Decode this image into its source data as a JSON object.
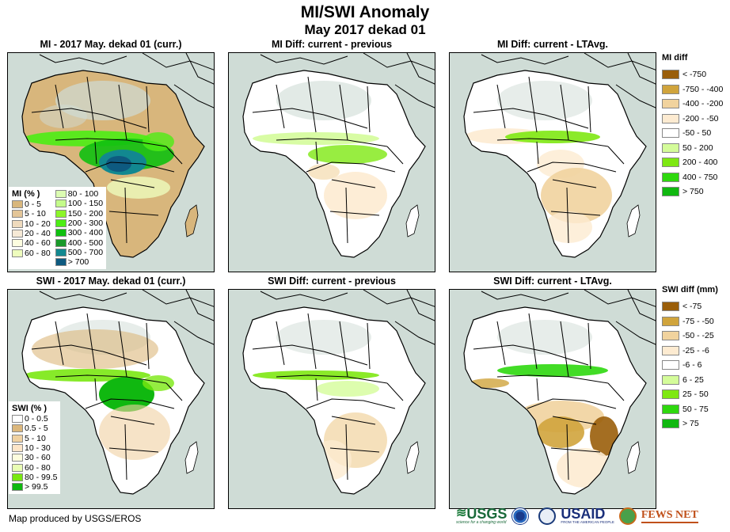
{
  "title": "MI/SWI Anomaly",
  "subtitle": "May 2017 dekad 01",
  "panels": [
    {
      "title": "MI - 2017 May. dekad 01 (curr.)",
      "mode": "mi_curr"
    },
    {
      "title": "MI Diff: current - previous",
      "mode": "mi_prev"
    },
    {
      "title": "MI Diff: current - LTAvg.",
      "mode": "mi_lta"
    },
    {
      "title": "SWI - 2017 May. dekad 01 (curr.)",
      "mode": "swi_curr"
    },
    {
      "title": "SWI Diff: current - previous",
      "mode": "swi_prev"
    },
    {
      "title": "SWI Diff: current - LTAvg.",
      "mode": "swi_lta"
    }
  ],
  "legend_mi": {
    "title": "MI (% )",
    "col1": [
      {
        "label": "0 - 5",
        "color": "#d8b67c"
      },
      {
        "label": "5 - 10",
        "color": "#e3c598"
      },
      {
        "label": "10 - 20",
        "color": "#efdabd"
      },
      {
        "label": "20 - 40",
        "color": "#f6e9d6"
      },
      {
        "label": "40 - 60",
        "color": "#fdfde0"
      },
      {
        "label": "60 - 80",
        "color": "#eefcbd"
      }
    ],
    "col2": [
      {
        "label": "80 - 100",
        "color": "#dcfcb2"
      },
      {
        "label": "100 - 150",
        "color": "#c4fb8a"
      },
      {
        "label": "150 - 200",
        "color": "#8cf52a"
      },
      {
        "label": "200 - 300",
        "color": "#4ded14"
      },
      {
        "label": "300 - 400",
        "color": "#10c010"
      },
      {
        "label": "400 - 500",
        "color": "#1a9a2a"
      },
      {
        "label": "500 - 700",
        "color": "#128890"
      },
      {
        "label": "> 700",
        "color": "#0e5a80"
      }
    ]
  },
  "legend_swi": {
    "title": "SWI (% )",
    "items": [
      {
        "label": "0 - 0.5",
        "color": "#ffffff"
      },
      {
        "label": "0.5 - 5",
        "color": "#dcb77c"
      },
      {
        "label": "5 - 10",
        "color": "#f0d1a1"
      },
      {
        "label": "10 - 30",
        "color": "#fde5c8"
      },
      {
        "label": "30 - 60",
        "color": "#fdfdde"
      },
      {
        "label": "60 - 80",
        "color": "#e9fdb4"
      },
      {
        "label": "80 - 99.5",
        "color": "#7ae812"
      },
      {
        "label": "> 99.5",
        "color": "#10b810"
      }
    ]
  },
  "legend_mi_diff": {
    "title": "MI diff",
    "items": [
      {
        "label": "< -750",
        "color": "#9a5e0a"
      },
      {
        "label": "-750 - -400",
        "color": "#d0a43c"
      },
      {
        "label": "-400 - -200",
        "color": "#f1d39e"
      },
      {
        "label": "-200 - -50",
        "color": "#fdebd1"
      },
      {
        "label": "-50 - 50",
        "color": "#ffffff"
      },
      {
        "label": "50 - 200",
        "color": "#d4fc9a"
      },
      {
        "label": "200 - 400",
        "color": "#7ee812"
      },
      {
        "label": "400 - 750",
        "color": "#2ed80e"
      },
      {
        "label": "> 750",
        "color": "#10b810"
      }
    ]
  },
  "legend_swi_diff": {
    "title": "SWI diff (mm)",
    "items": [
      {
        "label": "< -75",
        "color": "#9a5e0a"
      },
      {
        "label": "-75 - -50",
        "color": "#d0a43c"
      },
      {
        "label": "-50 - -25",
        "color": "#f1d39e"
      },
      {
        "label": "-25 - -6",
        "color": "#fdebd1"
      },
      {
        "label": "-6 - 6",
        "color": "#ffffff"
      },
      {
        "label": "6 - 25",
        "color": "#d4fc9a"
      },
      {
        "label": "25 - 50",
        "color": "#7ee812"
      },
      {
        "label": "50 - 75",
        "color": "#2ed80e"
      },
      {
        "label": "> 75",
        "color": "#10b810"
      }
    ]
  },
  "footer": "Map produced by USGS/EROS",
  "logos": [
    "USGS",
    "NOAA",
    "USAID",
    "FEWS NET"
  ],
  "logo_taglines": {
    "usgs": "science for a changing world",
    "usaid": "FROM THE AMERICAN PEOPLE"
  }
}
